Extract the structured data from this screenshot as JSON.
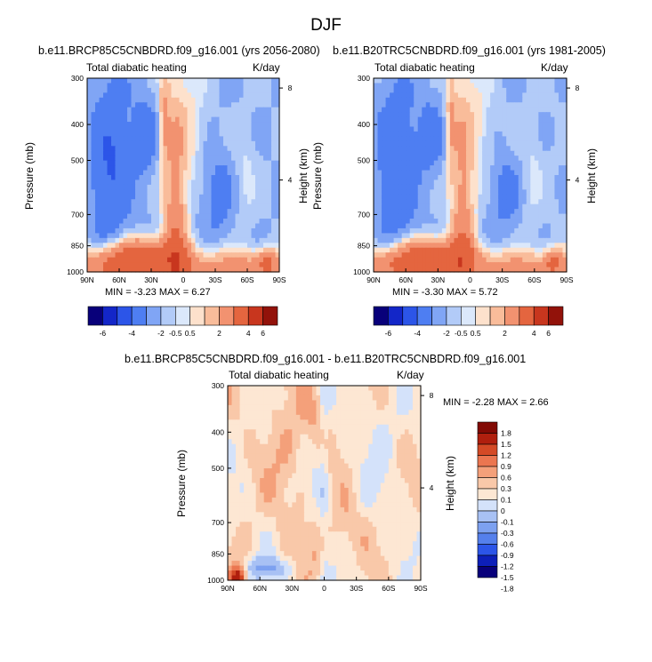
{
  "figure_title": "DJF",
  "colors": {
    "ramp_diverging_13": [
      "#08007a",
      "#1326c8",
      "#2c55e8",
      "#4e7ef2",
      "#80a5f5",
      "#b2cbf8",
      "#dbe8fb",
      "#fde1cc",
      "#f9bc9a",
      "#f29270",
      "#e4653f",
      "#c8361e",
      "#92120a"
    ],
    "ramp_diff_14": [
      "#08007a",
      "#0d1fb9",
      "#2c55e8",
      "#5580ec",
      "#7da1f0",
      "#a8c1f4",
      "#d4e2fa",
      "#fde7d3",
      "#f9c8a9",
      "#f4a07a",
      "#eb7650",
      "#d44a26",
      "#b01f0e",
      "#820a04"
    ]
  },
  "chart_data": [
    {
      "type": "heatmap",
      "panel": "top-left",
      "title": "b.e11.BRCP85C5CNBDRD.f09_g16.001 (yrs 2056-2080)",
      "left_label": "Total diabatic heating",
      "right_label": "K/day",
      "ylabel": "Pressure (mb)",
      "ylabel_right": "Height (km)",
      "x_ticks": [
        "90N",
        "60N",
        "30N",
        "0",
        "30S",
        "60S",
        "90S"
      ],
      "y_ticks": [
        "300",
        "400",
        "500",
        "700",
        "850",
        "1000"
      ],
      "y_ticks_right": [
        "8",
        "4"
      ],
      "yscale": "log",
      "min_label": "MIN = -3.23  MAX =  6.27",
      "min": -3.23,
      "max": 6.27,
      "colorbar": {
        "orientation": "horizontal",
        "labels": [
          "-6",
          "-4",
          "-2",
          "-0.5",
          "0.5",
          "2",
          "4",
          "6"
        ]
      }
    },
    {
      "type": "heatmap",
      "panel": "top-right",
      "title": "b.e11.B20TRC5CNBDRD.f09_g16.001 (yrs 1981-2005)",
      "left_label": "Total diabatic heating",
      "right_label": "K/day",
      "ylabel": "Pressure (mb)",
      "ylabel_right": "Height (km)",
      "x_ticks": [
        "90N",
        "60N",
        "30N",
        "0",
        "30S",
        "60S",
        "90S"
      ],
      "y_ticks": [
        "300",
        "400",
        "500",
        "700",
        "850",
        "1000"
      ],
      "y_ticks_right": [
        "8",
        "4"
      ],
      "yscale": "log",
      "min_label": "MIN = -3.30  MAX =  5.72",
      "min": -3.3,
      "max": 5.72,
      "colorbar": {
        "orientation": "horizontal",
        "labels": [
          "-6",
          "-4",
          "-2",
          "-0.5",
          "0.5",
          "2",
          "4",
          "6"
        ]
      }
    },
    {
      "type": "heatmap",
      "panel": "bottom",
      "title": "b.e11.BRCP85C5CNBDRD.f09_g16.001 - b.e11.B20TRC5CNBDRD.f09_g16.001",
      "left_label": "Total diabatic heating",
      "right_label": "K/day",
      "ylabel": "Pressure (mb)",
      "ylabel_right": "Height (km)",
      "x_ticks": [
        "90N",
        "60N",
        "30N",
        "0",
        "30S",
        "60S",
        "90S"
      ],
      "y_ticks": [
        "300",
        "400",
        "500",
        "700",
        "850",
        "1000"
      ],
      "y_ticks_right": [
        "8",
        "4"
      ],
      "yscale": "log",
      "min_label": "MIN = -2.28  MAX =  2.66",
      "min": -2.28,
      "max": 2.66,
      "colorbar": {
        "orientation": "vertical",
        "labels": [
          "1.8",
          "1.5",
          "1.2",
          "0.9",
          "0.6",
          "0.3",
          "0.1",
          "0",
          "-0.1",
          "-0.3",
          "-0.6",
          "-0.9",
          "-1.2",
          "-1.5",
          "-1.8"
        ]
      }
    }
  ]
}
